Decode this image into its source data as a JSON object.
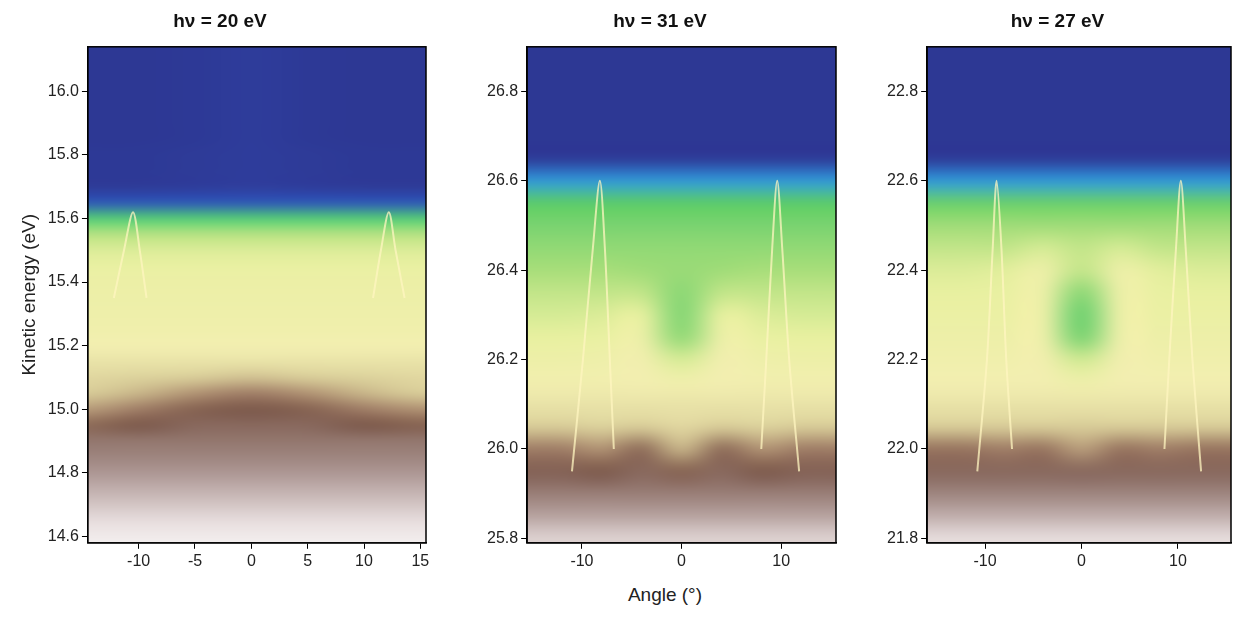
{
  "chart_data": [
    {
      "type": "heatmap",
      "title": "hν = 20 eV",
      "y_label": "Kinetic energy (eV)",
      "xlim": [
        -14.5,
        15.5
      ],
      "xticks": [
        -10,
        -5,
        0,
        5,
        10,
        15
      ],
      "ylim": [
        14.58,
        16.14
      ],
      "yticks": [
        14.6,
        14.8,
        {
          "value": 15,
          "label": "15.0"
        },
        15.2,
        15.4,
        15.6,
        15.8,
        {
          "value": 16,
          "label": "16.0"
        }
      ],
      "grid": false,
      "zlim": [
        0,
        1
      ],
      "cells": {
        "x": [
          -15,
          -10,
          -5,
          0,
          5,
          10,
          15
        ],
        "y": [
          16.15,
          16.1,
          16.05,
          16.0,
          15.95,
          15.9,
          15.85,
          15.8,
          15.75,
          15.7,
          15.65,
          15.6,
          15.55,
          15.5,
          15.45,
          15.4,
          15.35,
          15.3,
          15.25,
          15.2,
          15.15,
          15.1,
          15.05,
          15.0,
          14.95,
          14.9,
          14.85,
          14.8,
          14.75,
          14.7,
          14.65,
          14.6,
          14.55
        ],
        "z": [
          [
            0.05,
            0.05,
            0.06,
            0.08,
            0.06,
            0.05,
            0.05
          ],
          [
            0.05,
            0.05,
            0.06,
            0.08,
            0.06,
            0.05,
            0.05
          ],
          [
            0.05,
            0.05,
            0.06,
            0.08,
            0.06,
            0.05,
            0.05
          ],
          [
            0.05,
            0.05,
            0.06,
            0.08,
            0.06,
            0.05,
            0.05
          ],
          [
            0.05,
            0.05,
            0.06,
            0.08,
            0.06,
            0.05,
            0.05
          ],
          [
            0.05,
            0.05,
            0.06,
            0.08,
            0.06,
            0.05,
            0.05
          ],
          [
            0.05,
            0.05,
            0.06,
            0.08,
            0.06,
            0.05,
            0.05
          ],
          [
            0.06,
            0.06,
            0.07,
            0.08,
            0.07,
            0.06,
            0.06
          ],
          [
            0.06,
            0.06,
            0.07,
            0.08,
            0.07,
            0.06,
            0.06
          ],
          [
            0.07,
            0.07,
            0.08,
            0.09,
            0.08,
            0.07,
            0.07
          ],
          [
            0.12,
            0.12,
            0.12,
            0.12,
            0.12,
            0.12,
            0.12
          ],
          [
            0.34,
            0.34,
            0.34,
            0.34,
            0.34,
            0.34,
            0.34
          ],
          [
            0.48,
            0.48,
            0.48,
            0.48,
            0.48,
            0.48,
            0.48
          ],
          [
            0.54,
            0.54,
            0.54,
            0.54,
            0.54,
            0.54,
            0.54
          ],
          [
            0.57,
            0.57,
            0.57,
            0.57,
            0.57,
            0.57,
            0.57
          ],
          [
            0.59,
            0.59,
            0.59,
            0.59,
            0.59,
            0.59,
            0.59
          ],
          [
            0.6,
            0.6,
            0.6,
            0.6,
            0.6,
            0.6,
            0.6
          ],
          [
            0.61,
            0.61,
            0.61,
            0.61,
            0.61,
            0.61,
            0.61
          ],
          [
            0.62,
            0.62,
            0.62,
            0.62,
            0.62,
            0.62,
            0.62
          ],
          [
            0.64,
            0.64,
            0.64,
            0.64,
            0.64,
            0.64,
            0.64
          ],
          [
            0.66,
            0.66,
            0.66,
            0.66,
            0.66,
            0.66,
            0.66
          ],
          [
            0.68,
            0.69,
            0.7,
            0.71,
            0.7,
            0.69,
            0.68
          ],
          [
            0.7,
            0.72,
            0.75,
            0.77,
            0.75,
            0.72,
            0.7
          ],
          [
            0.74,
            0.77,
            0.8,
            0.81,
            0.8,
            0.77,
            0.75
          ],
          [
            0.79,
            0.81,
            0.83,
            0.83,
            0.83,
            0.81,
            0.8
          ],
          [
            0.85,
            0.85,
            0.85,
            0.85,
            0.85,
            0.85,
            0.85
          ],
          [
            0.87,
            0.87,
            0.87,
            0.87,
            0.87,
            0.87,
            0.87
          ],
          [
            0.89,
            0.89,
            0.89,
            0.89,
            0.89,
            0.89,
            0.89
          ],
          [
            0.91,
            0.91,
            0.91,
            0.91,
            0.91,
            0.91,
            0.91
          ],
          [
            0.93,
            0.93,
            0.93,
            0.93,
            0.93,
            0.93,
            0.93
          ],
          [
            0.95,
            0.95,
            0.95,
            0.95,
            0.95,
            0.95,
            0.95
          ],
          [
            0.97,
            0.97,
            0.97,
            0.97,
            0.97,
            0.97,
            0.97
          ],
          [
            0.98,
            0.98,
            0.98,
            0.98,
            0.98,
            0.98,
            0.98
          ]
        ]
      },
      "lines": [
        {
          "x": [
            -12.2,
            -11.3,
            -10.5,
            -9.9,
            -9.3
          ],
          "values": [
            15.35,
            15.5,
            15.62,
            15.5,
            15.35
          ],
          "color": "#fff6c0"
        },
        {
          "x": [
            10.8,
            11.5,
            12.2,
            12.8,
            13.6
          ],
          "values": [
            15.35,
            15.5,
            15.62,
            15.5,
            15.35
          ],
          "color": "#fff6c0"
        }
      ]
    },
    {
      "type": "heatmap",
      "title": "hν = 31 eV",
      "x_label": "Angle (°)",
      "xlim": [
        -15.5,
        15.5
      ],
      "xticks": [
        -10,
        0,
        10
      ],
      "ylim": [
        25.79,
        26.9
      ],
      "yticks": [
        25.8,
        {
          "value": 26,
          "label": "26.0"
        },
        26.2,
        26.4,
        26.6,
        26.8
      ],
      "grid": false,
      "zlim": [
        0,
        1
      ],
      "cells": {
        "x": [
          -16,
          -12,
          -8,
          -4,
          0,
          4,
          8,
          12,
          16
        ],
        "y": [
          26.9,
          26.85,
          26.8,
          26.75,
          26.7,
          26.65,
          26.6,
          26.55,
          26.5,
          26.45,
          26.4,
          26.35,
          26.3,
          26.25,
          26.2,
          26.15,
          26.1,
          26.05,
          26.0,
          25.95,
          25.9,
          25.85,
          25.8
        ],
        "z": [
          [
            0.05,
            0.05,
            0.05,
            0.05,
            0.05,
            0.05,
            0.05,
            0.05,
            0.05
          ],
          [
            0.05,
            0.05,
            0.05,
            0.05,
            0.05,
            0.05,
            0.05,
            0.05,
            0.05
          ],
          [
            0.05,
            0.05,
            0.05,
            0.05,
            0.05,
            0.05,
            0.05,
            0.05,
            0.05
          ],
          [
            0.05,
            0.05,
            0.05,
            0.05,
            0.05,
            0.05,
            0.05,
            0.05,
            0.05
          ],
          [
            0.05,
            0.05,
            0.05,
            0.05,
            0.05,
            0.05,
            0.05,
            0.05,
            0.05
          ],
          [
            0.07,
            0.07,
            0.07,
            0.07,
            0.07,
            0.07,
            0.07,
            0.07,
            0.07
          ],
          [
            0.18,
            0.18,
            0.18,
            0.18,
            0.18,
            0.18,
            0.18,
            0.18,
            0.18
          ],
          [
            0.36,
            0.36,
            0.36,
            0.36,
            0.36,
            0.36,
            0.36,
            0.36,
            0.36
          ],
          [
            0.4,
            0.4,
            0.4,
            0.4,
            0.4,
            0.4,
            0.4,
            0.4,
            0.4
          ],
          [
            0.43,
            0.43,
            0.43,
            0.43,
            0.43,
            0.43,
            0.43,
            0.43,
            0.43
          ],
          [
            0.46,
            0.46,
            0.46,
            0.45,
            0.44,
            0.45,
            0.46,
            0.46,
            0.46
          ],
          [
            0.5,
            0.5,
            0.5,
            0.5,
            0.42,
            0.5,
            0.5,
            0.5,
            0.5
          ],
          [
            0.53,
            0.53,
            0.54,
            0.56,
            0.41,
            0.56,
            0.54,
            0.53,
            0.53
          ],
          [
            0.56,
            0.56,
            0.57,
            0.6,
            0.43,
            0.6,
            0.57,
            0.56,
            0.56
          ],
          [
            0.6,
            0.6,
            0.61,
            0.63,
            0.53,
            0.63,
            0.61,
            0.6,
            0.6
          ],
          [
            0.63,
            0.63,
            0.63,
            0.64,
            0.62,
            0.64,
            0.63,
            0.63,
            0.63
          ],
          [
            0.66,
            0.66,
            0.66,
            0.66,
            0.66,
            0.66,
            0.66,
            0.66,
            0.66
          ],
          [
            0.7,
            0.7,
            0.69,
            0.7,
            0.68,
            0.7,
            0.69,
            0.7,
            0.7
          ],
          [
            0.77,
            0.77,
            0.75,
            0.79,
            0.72,
            0.79,
            0.75,
            0.77,
            0.77
          ],
          [
            0.82,
            0.82,
            0.81,
            0.83,
            0.8,
            0.83,
            0.81,
            0.82,
            0.82
          ],
          [
            0.86,
            0.86,
            0.86,
            0.86,
            0.86,
            0.86,
            0.86,
            0.86,
            0.86
          ],
          [
            0.9,
            0.9,
            0.9,
            0.9,
            0.9,
            0.9,
            0.9,
            0.9,
            0.9
          ],
          [
            0.94,
            0.94,
            0.94,
            0.94,
            0.94,
            0.94,
            0.94,
            0.94,
            0.94
          ]
        ]
      },
      "lines": [
        {
          "x": [
            -11,
            -9.9,
            -8.9,
            -8.2,
            -7.7,
            -7.2,
            -6.8
          ],
          "values": [
            25.95,
            26.2,
            26.45,
            26.6,
            26.45,
            26.2,
            26.0
          ],
          "color": "#fff6c0"
        },
        {
          "x": [
            8,
            8.5,
            9.1,
            9.6,
            10.1,
            10.8,
            11.8
          ],
          "values": [
            26.0,
            26.2,
            26.45,
            26.6,
            26.45,
            26.2,
            25.95
          ],
          "color": "#fff6c0"
        }
      ]
    },
    {
      "type": "heatmap",
      "title": "hν = 27 eV",
      "xlim": [
        -16,
        15.5
      ],
      "xticks": [
        -10,
        0,
        10
      ],
      "ylim": [
        21.79,
        22.9
      ],
      "yticks": [
        21.8,
        {
          "value": 22,
          "label": "22.0"
        },
        22.2,
        22.4,
        22.6,
        22.8
      ],
      "grid": false,
      "zlim": [
        0,
        1
      ],
      "cells": {
        "x": [
          -16,
          -12,
          -8,
          -4,
          0,
          4,
          8,
          12,
          16
        ],
        "y": [
          22.9,
          22.85,
          22.8,
          22.75,
          22.7,
          22.65,
          22.6,
          22.55,
          22.5,
          22.45,
          22.4,
          22.35,
          22.3,
          22.25,
          22.2,
          22.15,
          22.1,
          22.05,
          22.0,
          21.95,
          21.9,
          21.85,
          21.8
        ],
        "z": [
          [
            0.05,
            0.05,
            0.05,
            0.05,
            0.05,
            0.05,
            0.05,
            0.05,
            0.05
          ],
          [
            0.05,
            0.05,
            0.05,
            0.05,
            0.05,
            0.05,
            0.05,
            0.05,
            0.05
          ],
          [
            0.05,
            0.05,
            0.05,
            0.05,
            0.05,
            0.05,
            0.05,
            0.05,
            0.05
          ],
          [
            0.05,
            0.05,
            0.05,
            0.05,
            0.05,
            0.05,
            0.05,
            0.05,
            0.05
          ],
          [
            0.05,
            0.05,
            0.05,
            0.05,
            0.05,
            0.05,
            0.05,
            0.05,
            0.05
          ],
          [
            0.07,
            0.07,
            0.07,
            0.07,
            0.07,
            0.07,
            0.07,
            0.07,
            0.07
          ],
          [
            0.18,
            0.18,
            0.18,
            0.18,
            0.18,
            0.18,
            0.18,
            0.18,
            0.18
          ],
          [
            0.38,
            0.38,
            0.38,
            0.38,
            0.38,
            0.38,
            0.38,
            0.38,
            0.38
          ],
          [
            0.45,
            0.45,
            0.45,
            0.45,
            0.45,
            0.45,
            0.45,
            0.45,
            0.45
          ],
          [
            0.5,
            0.5,
            0.5,
            0.53,
            0.5,
            0.53,
            0.5,
            0.5,
            0.5
          ],
          [
            0.54,
            0.54,
            0.55,
            0.6,
            0.5,
            0.6,
            0.55,
            0.54,
            0.54
          ],
          [
            0.56,
            0.56,
            0.57,
            0.6,
            0.42,
            0.6,
            0.57,
            0.56,
            0.56
          ],
          [
            0.58,
            0.58,
            0.58,
            0.6,
            0.38,
            0.6,
            0.58,
            0.58,
            0.58
          ],
          [
            0.6,
            0.6,
            0.6,
            0.61,
            0.4,
            0.61,
            0.6,
            0.6,
            0.6
          ],
          [
            0.62,
            0.62,
            0.62,
            0.63,
            0.52,
            0.63,
            0.62,
            0.62,
            0.62
          ],
          [
            0.64,
            0.64,
            0.64,
            0.64,
            0.61,
            0.64,
            0.64,
            0.64,
            0.64
          ],
          [
            0.66,
            0.66,
            0.66,
            0.66,
            0.66,
            0.66,
            0.66,
            0.66,
            0.66
          ],
          [
            0.7,
            0.7,
            0.7,
            0.7,
            0.7,
            0.7,
            0.7,
            0.7,
            0.7
          ],
          [
            0.78,
            0.78,
            0.77,
            0.78,
            0.74,
            0.78,
            0.77,
            0.78,
            0.78
          ],
          [
            0.83,
            0.83,
            0.83,
            0.83,
            0.83,
            0.83,
            0.83,
            0.83,
            0.83
          ],
          [
            0.87,
            0.87,
            0.87,
            0.87,
            0.87,
            0.87,
            0.87,
            0.87,
            0.87
          ],
          [
            0.91,
            0.91,
            0.91,
            0.91,
            0.91,
            0.91,
            0.91,
            0.91,
            0.91
          ],
          [
            0.95,
            0.95,
            0.95,
            0.95,
            0.95,
            0.95,
            0.95,
            0.95,
            0.95
          ]
        ]
      },
      "lines": [
        {
          "x": [
            -10.8,
            -9.8,
            -9.2,
            -8.8,
            -8.3,
            -7.8,
            -7.2
          ],
          "values": [
            21.95,
            22.2,
            22.45,
            22.6,
            22.45,
            22.2,
            22.0
          ],
          "color": "#fff6c0"
        },
        {
          "x": [
            8.6,
            9.1,
            9.8,
            10.3,
            10.8,
            11.5,
            12.4
          ],
          "values": [
            22.0,
            22.2,
            22.45,
            22.6,
            22.45,
            22.2,
            21.95
          ],
          "color": "#fff6c0"
        }
      ]
    }
  ]
}
